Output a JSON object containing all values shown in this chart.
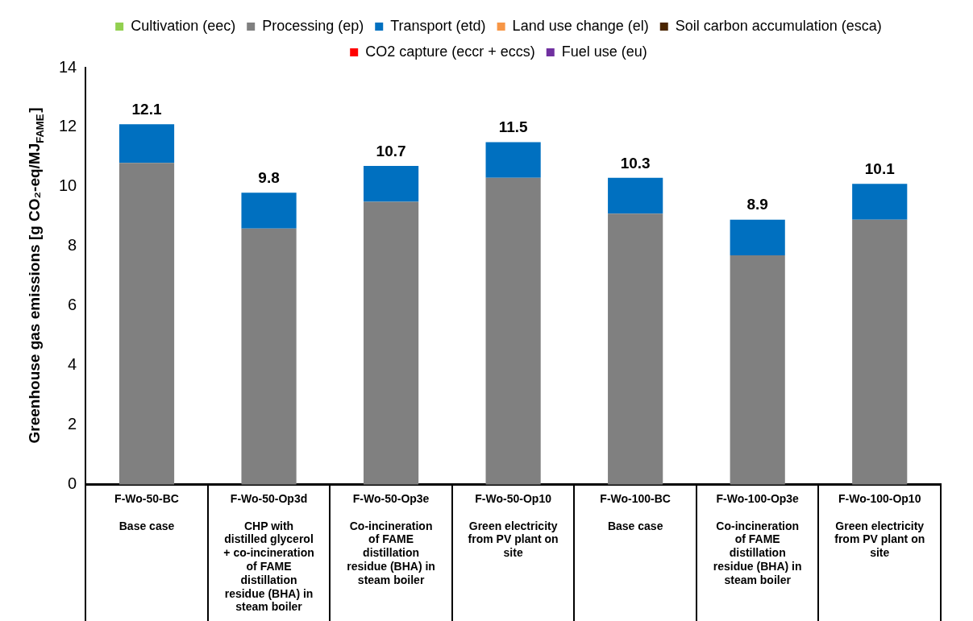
{
  "chart_data": {
    "type": "bar",
    "stacked": true,
    "ylabel": "Greenhouse gas emissions [g CO₂-eq/MJ$_{FAME}$]",
    "categories": [
      "F-Wo-50-BC\nBase case",
      "F-Wo-50-Op3d\nCHP with distilled glycerol + co-incineration of FAME distillation residue (BHA) in steam boiler",
      "F-Wo-50-Op3e\nCo-incineration of FAME distillation residue (BHA) in steam boiler",
      "F-Wo-50-Op10\nGreen electricity from PV plant on site",
      "F-Wo-100-BC\nBase case",
      "F-Wo-100-Op3e\nCo-incineration of FAME distillation residue (BHA) in steam boiler",
      "F-Wo-100-Op10\nGreen electricity from PV plant on site"
    ],
    "series": [
      {
        "name": "Cultivation (eec)",
        "color": "#92d050",
        "values": [
          null,
          null,
          null,
          null,
          null,
          null,
          null
        ]
      },
      {
        "name": "Processing (ep)",
        "color": "#808080",
        "values": [
          10.8,
          8.6,
          9.5,
          10.3,
          9.1,
          7.7,
          8.9
        ]
      },
      {
        "name": "Transport (etd)",
        "color": "#0070c0",
        "values": [
          1.3,
          1.2,
          1.2,
          1.2,
          1.2,
          1.2,
          1.2
        ]
      },
      {
        "name": "Land use change (el)",
        "color": "#f79646",
        "values": [
          null,
          null,
          null,
          null,
          null,
          null,
          null
        ]
      },
      {
        "name": "Soil carbon accumulation (esca)",
        "color": "#4a2500",
        "values": [
          null,
          null,
          null,
          null,
          null,
          null,
          null
        ]
      },
      {
        "name": "CO2 capture (eccr + eccs)",
        "color": "#ff0000",
        "values": [
          null,
          null,
          null,
          null,
          null,
          null,
          null
        ]
      },
      {
        "name": "Fuel use (eu)",
        "color": "#7030a0",
        "values": [
          null,
          null,
          null,
          null,
          null,
          null,
          null
        ]
      }
    ],
    "totals": [
      "12.1",
      "9.8",
      "10.7",
      "11.5",
      "10.3",
      "8.9",
      "10.1"
    ],
    "ylim": [
      0,
      14
    ],
    "yticks": [
      0,
      2,
      4,
      6,
      8,
      10,
      12,
      14
    ],
    "grid": false,
    "legend": "top"
  }
}
